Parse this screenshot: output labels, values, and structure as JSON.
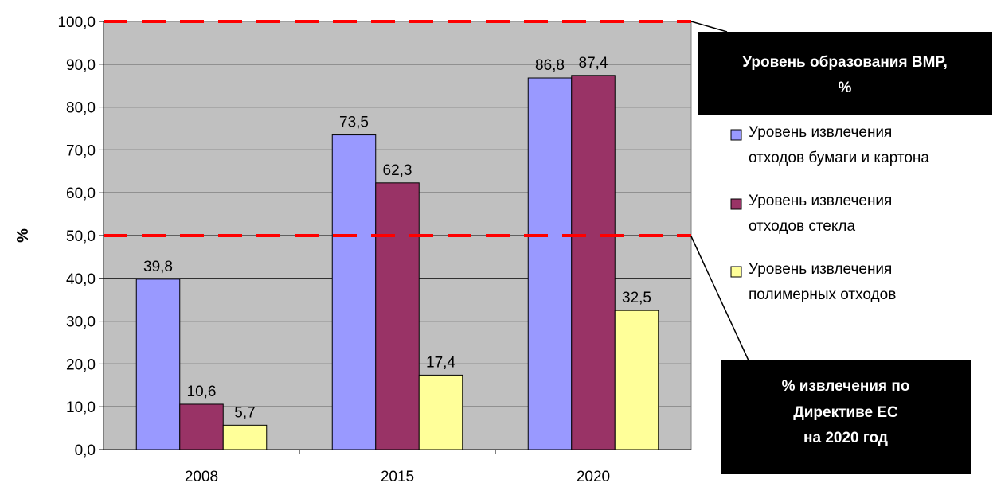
{
  "chart_data": {
    "type": "bar",
    "categories": [
      "2008",
      "2015",
      "2020"
    ],
    "series": [
      {
        "name": "Уровень извлечения отходов бумаги и картона",
        "values": [
          39.8,
          73.5,
          86.8
        ],
        "color": "#9999FF"
      },
      {
        "name": "Уровень извлечения отходов стекла",
        "values": [
          10.6,
          62.3,
          87.4
        ],
        "color": "#993366"
      },
      {
        "name": "Уровень извлечения полимерных отходов",
        "values": [
          5.7,
          17.4,
          32.5
        ],
        "color": "#FFFF99"
      }
    ],
    "data_labels": [
      [
        "39,8",
        "73,5",
        "86,8"
      ],
      [
        "10,6",
        "62,3",
        "87,4"
      ],
      [
        "5,7",
        "17,4",
        "32,5"
      ]
    ],
    "ylabel": "%",
    "ylim": [
      0,
      100
    ],
    "yticks": [
      "0,0",
      "10,0",
      "20,0",
      "30,0",
      "40,0",
      "50,0",
      "60,0",
      "70,0",
      "80,0",
      "90,0",
      "100,0"
    ],
    "grid": true,
    "plot_background": "#C0C0C0",
    "legend_position": "right",
    "reference_lines": [
      {
        "value": 100,
        "color": "#FF0000",
        "style": "dashed",
        "label_lines": [
          "Уровень образования ВМР,",
          "%"
        ]
      },
      {
        "value": 50,
        "color": "#FF0000",
        "style": "dashed",
        "label_lines": [
          "% извлечения по",
          "Директиве ЕС",
          "на 2020 год"
        ]
      }
    ]
  }
}
